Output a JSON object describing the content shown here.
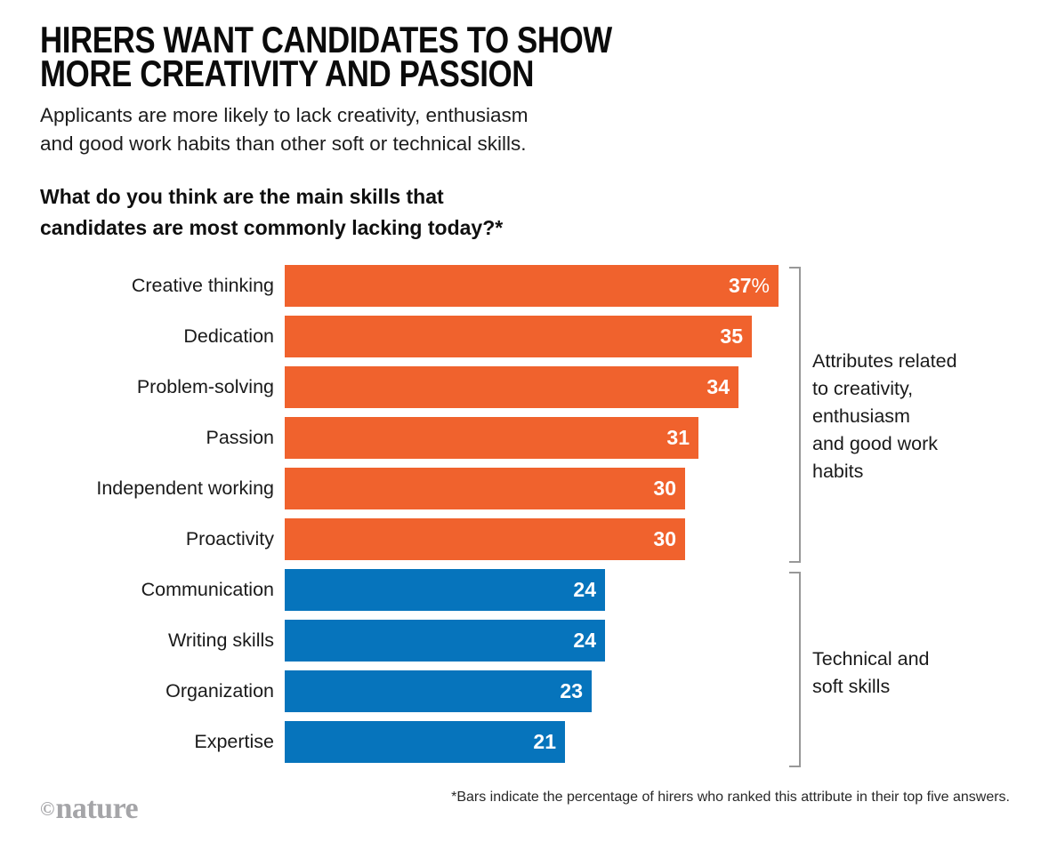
{
  "header": {
    "title": "HIRERS WANT CANDIDATES TO SHOW\nMORE CREATIVITY AND PASSION",
    "subtitle": "Applicants are more likely to lack creativity, enthusiasm\nand good work habits than other soft or technical skills.",
    "question": "What do you think are the main skills that\ncandidates are most commonly lacking today?*"
  },
  "chart_data": {
    "type": "bar",
    "orientation": "horizontal",
    "unit": "percent",
    "xlim": [
      0,
      40
    ],
    "grid": false,
    "legend_position": "right-brackets",
    "categories": [
      "Creative thinking",
      "Dedication",
      "Problem-solving",
      "Passion",
      "Independent working",
      "Proactivity",
      "Communication",
      "Writing skills",
      "Organization",
      "Expertise"
    ],
    "values": [
      37,
      35,
      34,
      31,
      30,
      30,
      24,
      24,
      23,
      21
    ],
    "items": [
      {
        "label": "Creative thinking",
        "value": 37,
        "suffix": "%",
        "group": "creativity"
      },
      {
        "label": "Dedication",
        "value": 35,
        "suffix": "",
        "group": "creativity"
      },
      {
        "label": "Problem-solving",
        "value": 34,
        "suffix": "",
        "group": "creativity"
      },
      {
        "label": "Passion",
        "value": 31,
        "suffix": "",
        "group": "creativity"
      },
      {
        "label": "Independent working",
        "value": 30,
        "suffix": "",
        "group": "creativity"
      },
      {
        "label": "Proactivity",
        "value": 30,
        "suffix": "",
        "group": "creativity"
      },
      {
        "label": "Communication",
        "value": 24,
        "suffix": "",
        "group": "technical"
      },
      {
        "label": "Writing skills",
        "value": 24,
        "suffix": "",
        "group": "technical"
      },
      {
        "label": "Organization",
        "value": 23,
        "suffix": "",
        "group": "technical"
      },
      {
        "label": "Expertise",
        "value": 21,
        "suffix": "",
        "group": "technical"
      }
    ],
    "groups": [
      {
        "id": "creativity",
        "color": "#F0622D",
        "label": "Attributes related\nto creativity,\nenthusiasm\nand good work\nhabits"
      },
      {
        "id": "technical",
        "color": "#0674BC",
        "label": "Technical and\nsoft skills"
      }
    ]
  },
  "footer": {
    "logo_symbol": "©",
    "logo_text": "nature",
    "footnote": "*Bars indicate the percentage of hirers who ranked this attribute in their top five answers."
  }
}
